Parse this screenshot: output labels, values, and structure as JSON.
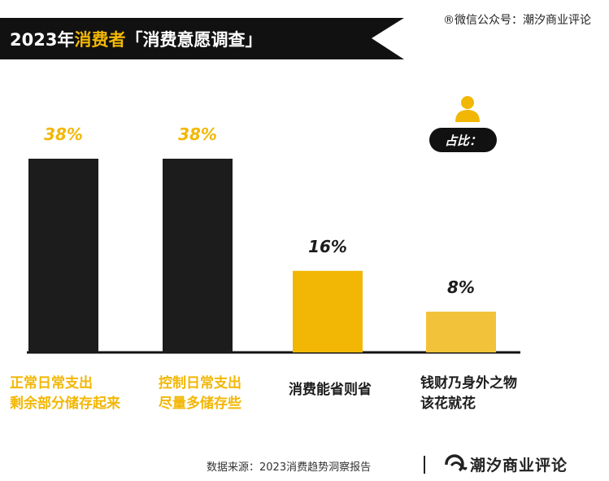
{
  "header": {
    "title_year": "2023年",
    "title_highlight": "消费者",
    "title_rest": "「消费意愿调查」"
  },
  "watermark": "®微信公众号：潮汐商业评论",
  "legend": {
    "label": "占比：",
    "icon": "person-icon"
  },
  "colors": {
    "dark": "#1c1c1c",
    "accent": "#f2b705",
    "light_accent": "#f2c23a"
  },
  "chart_data": {
    "type": "bar",
    "categories": [
      [
        "正常日常支出",
        "剩余部分储存起来"
      ],
      [
        "控制日常支出",
        "尽量多储存些"
      ],
      [
        "消费能省则省"
      ],
      [
        "钱财乃身外之物",
        "该花就花"
      ]
    ],
    "values": [
      38,
      38,
      16,
      8
    ],
    "value_labels": [
      "38%",
      "38%",
      "16%",
      "8%"
    ],
    "bar_colors": [
      "#1c1c1c",
      "#1c1c1c",
      "#f2b705",
      "#f2c23a"
    ],
    "value_label_colors": [
      "#f2b705",
      "#f2b705",
      "#1c1c1c",
      "#1c1c1c"
    ],
    "label_colors": [
      "#f2b705",
      "#f2b705",
      "#1c1c1c",
      "#1c1c1c"
    ],
    "unit": "%",
    "ylim": [
      0,
      38
    ],
    "grid": false
  },
  "footer": {
    "source": "数据来源：2023消费趋势洞察报告",
    "brand": "潮汐商业评论"
  }
}
